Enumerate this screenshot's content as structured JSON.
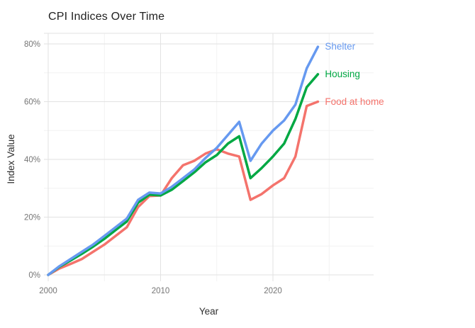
{
  "title": "CPI Indices Over Time",
  "axes": {
    "x_title": "Year",
    "y_title": "Index Value"
  },
  "colors": {
    "shelter": "#6699F0",
    "housing": "#00A843",
    "food_at_home": "#F4736C",
    "grid_major": "#e2e2e2",
    "grid_minor": "#f2f2f2",
    "tick_text": "#757575"
  },
  "chart_data": {
    "type": "line",
    "title": "CPI Indices Over Time",
    "xlabel": "Year",
    "ylabel": "Index Value",
    "grid": true,
    "legend_position": "line-end-labels",
    "x": [
      2000,
      2001,
      2002,
      2003,
      2004,
      2005,
      2006,
      2007,
      2008,
      2009,
      2010,
      2011,
      2012,
      2013,
      2014,
      2015,
      2016,
      2017,
      2018,
      2019,
      2020,
      2021,
      2022,
      2023,
      2024
    ],
    "series": [
      {
        "name": "Shelter",
        "color": "#6699F0",
        "values": [
          0,
          3,
          5.5,
          8,
          10.5,
          13.5,
          16.5,
          19.5,
          26,
          28.5,
          28.2,
          30.5,
          33.5,
          36.5,
          40.5,
          44,
          48.5,
          53,
          39.5,
          45.5,
          50,
          53.5,
          59,
          71.5,
          79
        ]
      },
      {
        "name": "Housing",
        "color": "#00A843",
        "values": [
          0,
          2.8,
          5,
          7.3,
          9.8,
          12.5,
          15.5,
          18.5,
          25,
          27.8,
          27.5,
          29.5,
          32.5,
          35.5,
          39,
          41.5,
          45.5,
          48,
          33.5,
          37,
          41,
          45.5,
          54,
          65,
          69.5
        ]
      },
      {
        "name": "Food at home",
        "color": "#F4736C",
        "values": [
          0,
          2.2,
          3.8,
          5.5,
          8,
          10.5,
          13.5,
          16.5,
          23.5,
          27.3,
          27.5,
          33.5,
          38,
          39.5,
          42,
          43.5,
          42,
          41,
          26,
          28,
          31,
          33.5,
          41,
          58.5,
          60
        ]
      }
    ],
    "y_axis": {
      "tick_format": "percent",
      "ticks_major": [
        0,
        20,
        40,
        60,
        80
      ],
      "ticks_minor": [
        10,
        30,
        50,
        70
      ],
      "range_min": -2.2,
      "range_max": 83.7
    },
    "x_axis": {
      "ticks_major": [
        2000,
        2010,
        2020
      ],
      "ticks_minor": [
        2005,
        2015,
        2025
      ],
      "range_min": 1999.6,
      "range_max": 2029
    }
  }
}
